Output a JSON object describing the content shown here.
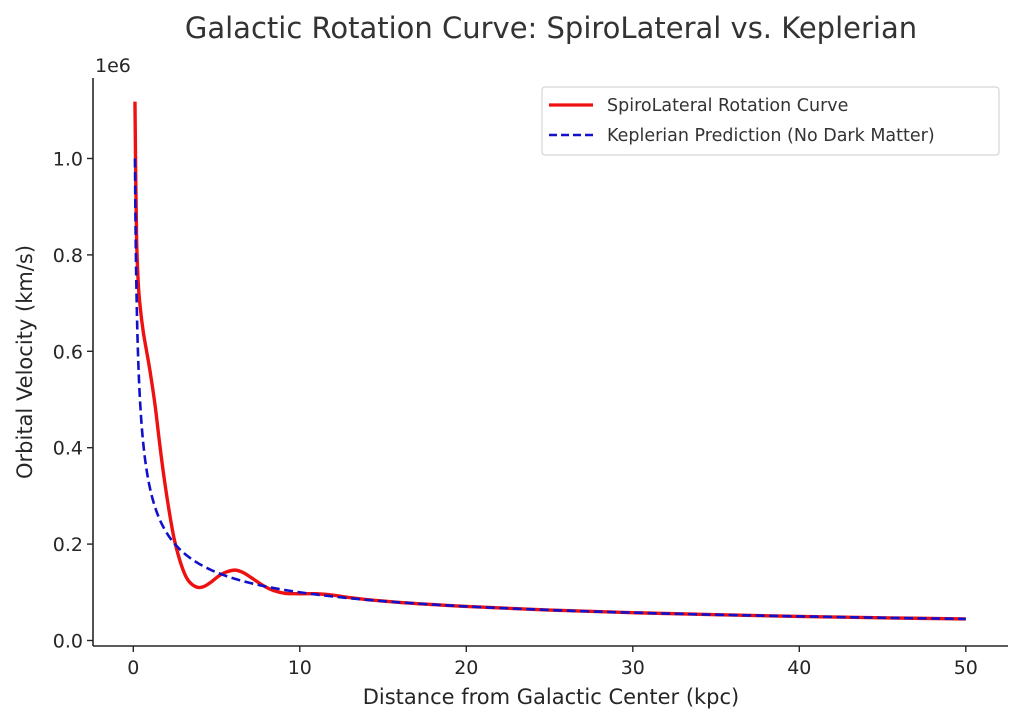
{
  "chart_data": {
    "type": "line",
    "title": "Galactic Rotation Curve: SpiroLateral vs. Keplerian",
    "xlabel": "Distance from Galactic Center (kpc)",
    "ylabel": "Orbital Velocity (km/s)",
    "y_offset_label": "1e6",
    "xlim": [
      -2.5,
      52.5
    ],
    "ylim": [
      -0.01,
      1.17
    ],
    "y_scale": 1000000,
    "xticks": [
      0,
      10,
      20,
      30,
      40,
      50
    ],
    "xtick_labels": [
      "0",
      "10",
      "20",
      "30",
      "40",
      "50"
    ],
    "yticks": [
      0.0,
      0.2,
      0.4,
      0.6,
      0.8,
      1.0
    ],
    "ytick_labels": [
      "0.0",
      "0.2",
      "0.4",
      "0.6",
      "0.8",
      "1.0"
    ],
    "grid": false,
    "legend_position": "top-right",
    "series": [
      {
        "name": "SpiroLateral Rotation Curve",
        "color": "#ee1111",
        "style": "solid",
        "x": [
          0.1,
          0.15,
          0.2,
          0.3,
          0.42,
          0.6,
          0.8,
          1.0,
          1.3,
          1.56,
          1.8,
          2.1,
          2.4,
          2.6,
          2.9,
          3.2,
          3.5,
          3.9,
          4.3,
          4.7,
          5.1,
          5.5,
          6.1,
          6.6,
          7.1,
          7.8,
          8.4,
          9.1,
          10.0,
          11.0,
          12.0,
          13.0,
          14.0,
          16.0,
          18.0,
          20.0,
          25.0,
          30.0,
          35.0,
          40.0,
          45.0,
          50.0
        ],
        "y": [
          1.118,
          0.95,
          0.83,
          0.74,
          0.69,
          0.64,
          0.6,
          0.56,
          0.49,
          0.415,
          0.35,
          0.28,
          0.22,
          0.19,
          0.155,
          0.13,
          0.117,
          0.11,
          0.113,
          0.122,
          0.133,
          0.141,
          0.146,
          0.141,
          0.13,
          0.114,
          0.104,
          0.098,
          0.097,
          0.097,
          0.094,
          0.089,
          0.085,
          0.079,
          0.0745,
          0.0707,
          0.0632,
          0.0577,
          0.0535,
          0.05,
          0.0471,
          0.0447
        ]
      },
      {
        "name": "Keplerian Prediction (No Dark Matter)",
        "color": "#1111cc",
        "style": "dashed",
        "formula": "v = 1e6 * sqrt(0.1 / r)",
        "x_range": [
          0.1,
          50.0
        ]
      }
    ]
  }
}
